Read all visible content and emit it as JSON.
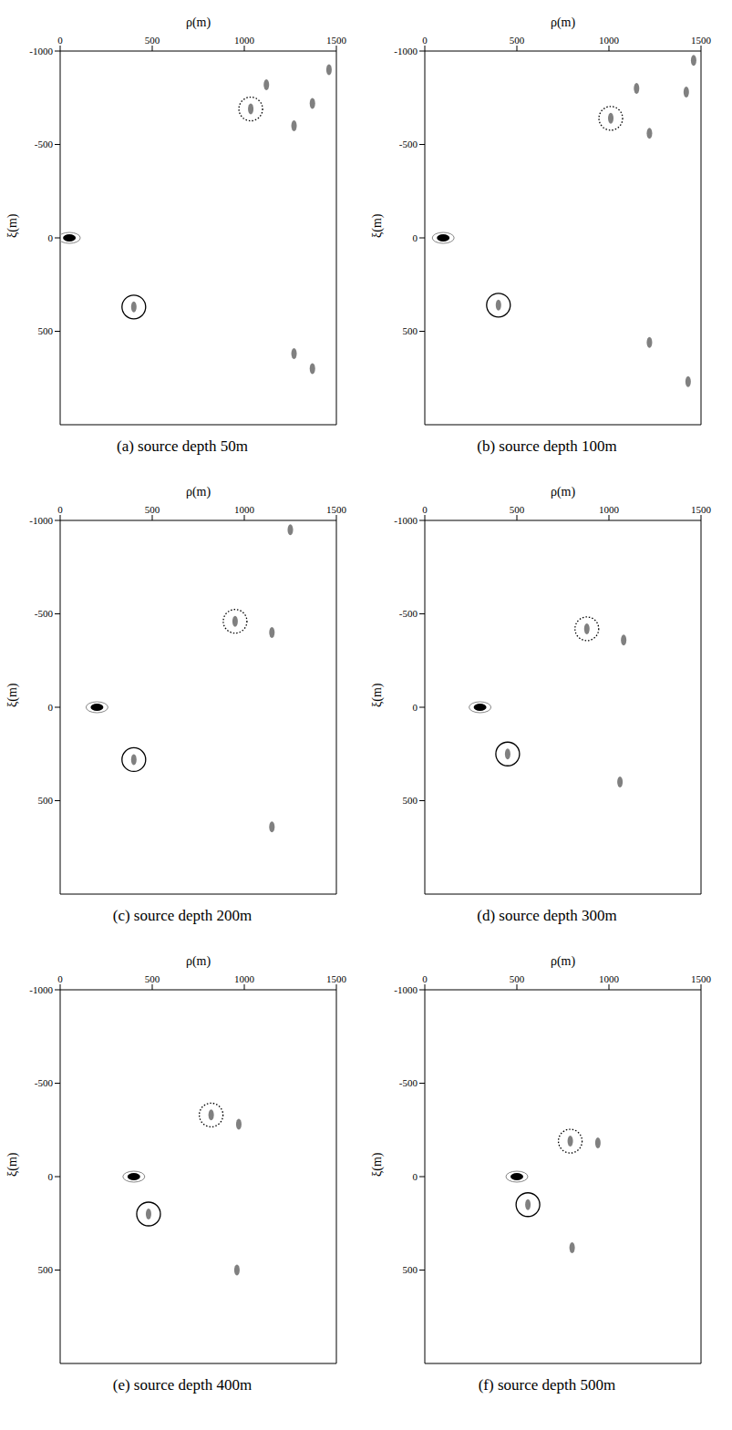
{
  "chart_data": [
    {
      "type": "scatter",
      "title": "(a) source depth 50m",
      "x_label": "ρ(m)",
      "y_label": "ξ(m)",
      "xlim": [
        0,
        1500
      ],
      "ylim": [
        -1000,
        1000
      ],
      "xticks": [
        0,
        500,
        1000,
        1500
      ],
      "yticks": [
        -1000,
        -500,
        0,
        500
      ],
      "series": [
        {
          "marker": "source",
          "color": "#000000",
          "x": [
            50
          ],
          "values": [
            0
          ]
        },
        {
          "marker": "ring",
          "line_style": "solid",
          "color": "#000000",
          "x": [
            400
          ],
          "values": [
            370
          ]
        },
        {
          "marker": "ring",
          "line_style": "dotted",
          "color": "#000000",
          "x": [
            1035
          ],
          "values": [
            -690
          ]
        },
        {
          "marker": "blob",
          "color": "#555555",
          "x": [
            400,
            1035,
            1120,
            1270,
            1370,
            1460,
            1270,
            1370
          ],
          "values": [
            370,
            -690,
            -820,
            -600,
            -720,
            -900,
            620,
            700
          ]
        }
      ]
    },
    {
      "type": "scatter",
      "title": "(b) source depth 100m",
      "x_label": "ρ(m)",
      "y_label": "ξ(m)",
      "xlim": [
        0,
        1500
      ],
      "ylim": [
        -1000,
        1000
      ],
      "xticks": [
        0,
        500,
        1000,
        1500
      ],
      "yticks": [
        -1000,
        -500,
        0,
        500
      ],
      "series": [
        {
          "marker": "source",
          "color": "#000000",
          "x": [
            100
          ],
          "values": [
            0
          ]
        },
        {
          "marker": "ring",
          "line_style": "solid",
          "color": "#000000",
          "x": [
            400
          ],
          "values": [
            360
          ]
        },
        {
          "marker": "ring",
          "line_style": "dotted",
          "color": "#000000",
          "x": [
            1010
          ],
          "values": [
            -640
          ]
        },
        {
          "marker": "blob",
          "color": "#555555",
          "x": [
            400,
            1010,
            1150,
            1220,
            1420,
            1460,
            1220,
            1430
          ],
          "values": [
            360,
            -640,
            -800,
            -560,
            -780,
            -950,
            560,
            770
          ]
        }
      ]
    },
    {
      "type": "scatter",
      "title": "(c) source depth 200m",
      "x_label": "ρ(m)",
      "y_label": "ξ(m)",
      "xlim": [
        0,
        1500
      ],
      "ylim": [
        -1000,
        1000
      ],
      "xticks": [
        0,
        500,
        1000,
        1500
      ],
      "yticks": [
        -1000,
        -500,
        0,
        500
      ],
      "series": [
        {
          "marker": "source",
          "color": "#000000",
          "x": [
            200
          ],
          "values": [
            0
          ]
        },
        {
          "marker": "ring",
          "line_style": "solid",
          "color": "#000000",
          "x": [
            400
          ],
          "values": [
            280
          ]
        },
        {
          "marker": "ring",
          "line_style": "dotted",
          "color": "#000000",
          "x": [
            950
          ],
          "values": [
            -460
          ]
        },
        {
          "marker": "blob",
          "color": "#555555",
          "x": [
            400,
            950,
            1150,
            1250,
            1150
          ],
          "values": [
            280,
            -460,
            -400,
            -950,
            640
          ]
        }
      ]
    },
    {
      "type": "scatter",
      "title": "(d) source depth 300m",
      "x_label": "ρ(m)",
      "y_label": "ξ(m)",
      "xlim": [
        0,
        1500
      ],
      "ylim": [
        -1000,
        1000
      ],
      "xticks": [
        0,
        500,
        1000,
        1500
      ],
      "yticks": [
        -1000,
        -500,
        0,
        500
      ],
      "series": [
        {
          "marker": "source",
          "color": "#000000",
          "x": [
            300
          ],
          "values": [
            0
          ]
        },
        {
          "marker": "ring",
          "line_style": "solid",
          "color": "#000000",
          "x": [
            450
          ],
          "values": [
            250
          ]
        },
        {
          "marker": "ring",
          "line_style": "dotted",
          "color": "#000000",
          "x": [
            880
          ],
          "values": [
            -420
          ]
        },
        {
          "marker": "blob",
          "color": "#555555",
          "x": [
            450,
            880,
            1080,
            1060
          ],
          "values": [
            250,
            -420,
            -360,
            400
          ]
        }
      ]
    },
    {
      "type": "scatter",
      "title": "(e) source depth 400m",
      "x_label": "ρ(m)",
      "y_label": "ξ(m)",
      "xlim": [
        0,
        1500
      ],
      "ylim": [
        -1000,
        1000
      ],
      "xticks": [
        0,
        500,
        1000,
        1500
      ],
      "yticks": [
        -1000,
        -500,
        0,
        500
      ],
      "series": [
        {
          "marker": "source",
          "color": "#000000",
          "x": [
            400
          ],
          "values": [
            0
          ]
        },
        {
          "marker": "ring",
          "line_style": "solid",
          "color": "#000000",
          "x": [
            480
          ],
          "values": [
            200
          ]
        },
        {
          "marker": "ring",
          "line_style": "dotted",
          "color": "#000000",
          "x": [
            820
          ],
          "values": [
            -330
          ]
        },
        {
          "marker": "blob",
          "color": "#555555",
          "x": [
            480,
            820,
            970,
            960
          ],
          "values": [
            200,
            -330,
            -280,
            500
          ]
        }
      ]
    },
    {
      "type": "scatter",
      "title": "(f) source depth 500m",
      "x_label": "ρ(m)",
      "y_label": "ξ(m)",
      "xlim": [
        0,
        1500
      ],
      "ylim": [
        -1000,
        1000
      ],
      "xticks": [
        0,
        500,
        1000,
        1500
      ],
      "yticks": [
        -1000,
        -500,
        0,
        500
      ],
      "series": [
        {
          "marker": "source",
          "color": "#000000",
          "x": [
            500
          ],
          "values": [
            0
          ]
        },
        {
          "marker": "ring",
          "line_style": "solid",
          "color": "#000000",
          "x": [
            560
          ],
          "values": [
            150
          ]
        },
        {
          "marker": "ring",
          "line_style": "dotted",
          "color": "#000000",
          "x": [
            790
          ],
          "values": [
            -190
          ]
        },
        {
          "marker": "blob",
          "color": "#555555",
          "x": [
            560,
            790,
            940,
            800
          ],
          "values": [
            150,
            -190,
            -180,
            380
          ]
        }
      ]
    }
  ]
}
